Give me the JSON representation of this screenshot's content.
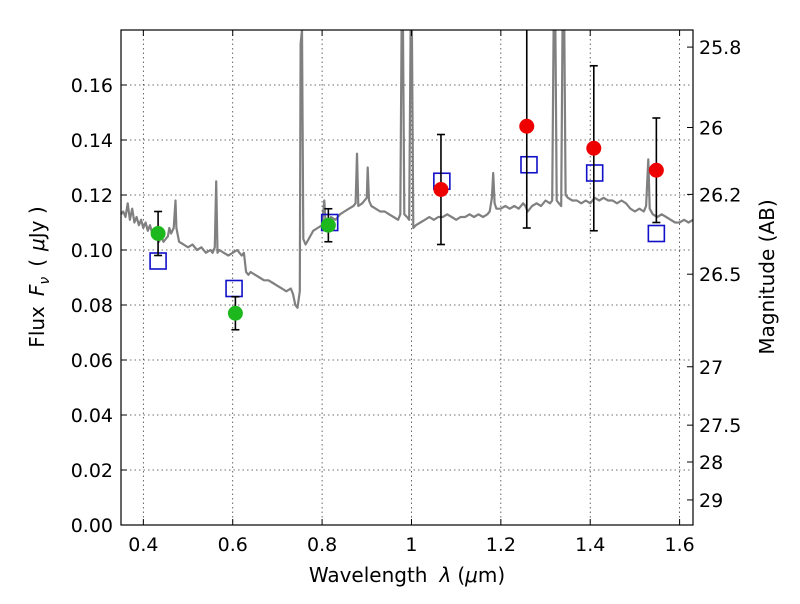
{
  "chart_data": {
    "type": "scatter",
    "title": "",
    "xlabel": {
      "prefix": "Wavelength",
      "symbol": "λ",
      "unit_open": "(",
      "unit_mu": "μ",
      "unit_rest": "m)"
    },
    "ylabel": {
      "prefix": "Flux",
      "symbol": "F",
      "subscript": "ν",
      "unit_open": "(",
      "unit_mu": "μ",
      "unit_rest": "Jy )"
    },
    "y2label": "Magnitude (AB)",
    "xlim": [
      0.35,
      1.63
    ],
    "ylim": [
      0.0,
      0.18
    ],
    "grid": true,
    "x_ticks": [
      {
        "value": 0.4,
        "label": "0.4"
      },
      {
        "value": 0.6,
        "label": "0.6"
      },
      {
        "value": 0.8,
        "label": "0.8"
      },
      {
        "value": 1.0,
        "label": "1"
      },
      {
        "value": 1.2,
        "label": "1.2"
      },
      {
        "value": 1.4,
        "label": "1.4"
      },
      {
        "value": 1.6,
        "label": "1.6"
      }
    ],
    "y_ticks": [
      {
        "value": 0.0,
        "label": "0.00"
      },
      {
        "value": 0.02,
        "label": "0.02"
      },
      {
        "value": 0.04,
        "label": "0.04"
      },
      {
        "value": 0.06,
        "label": "0.06"
      },
      {
        "value": 0.08,
        "label": "0.08"
      },
      {
        "value": 0.1,
        "label": "0.10"
      },
      {
        "value": 0.12,
        "label": "0.12"
      },
      {
        "value": 0.14,
        "label": "0.14"
      },
      {
        "value": 0.16,
        "label": "0.16"
      }
    ],
    "y2_ticks": [
      {
        "mag": 25.8,
        "label": "25.8"
      },
      {
        "mag": 26.0,
        "label": "26"
      },
      {
        "mag": 26.2,
        "label": "26.2"
      },
      {
        "mag": 26.5,
        "label": "26.5"
      },
      {
        "mag": 27.0,
        "label": "27"
      },
      {
        "mag": 27.5,
        "label": "27.5"
      },
      {
        "mag": 28.0,
        "label": "28"
      },
      {
        "mag": 29.0,
        "label": "29"
      }
    ],
    "observed_points": [
      {
        "x": 0.433,
        "y": 0.106,
        "yerr": 0.008,
        "color": "#1db81d"
      },
      {
        "x": 0.606,
        "y": 0.077,
        "yerr": 0.006,
        "color": "#1db81d"
      },
      {
        "x": 0.814,
        "y": 0.109,
        "yerr": 0.006,
        "color": "#1db81d"
      },
      {
        "x": 1.066,
        "y": 0.122,
        "yerr": 0.02,
        "color": "#ee0000"
      },
      {
        "x": 1.258,
        "y": 0.145,
        "yerr": 0.037,
        "color": "#ee0000"
      },
      {
        "x": 1.408,
        "y": 0.137,
        "yerr": 0.03,
        "color": "#ee0000"
      },
      {
        "x": 1.548,
        "y": 0.129,
        "yerr": 0.019,
        "color": "#ee0000"
      }
    ],
    "model_points": [
      {
        "x": 0.433,
        "y": 0.096
      },
      {
        "x": 0.603,
        "y": 0.086
      },
      {
        "x": 0.817,
        "y": 0.11
      },
      {
        "x": 1.068,
        "y": 0.125
      },
      {
        "x": 1.263,
        "y": 0.131
      },
      {
        "x": 1.41,
        "y": 0.128
      },
      {
        "x": 1.548,
        "y": 0.106
      }
    ],
    "model_marker_color": "#1010c8",
    "spectrum_color": "#808080",
    "spectrum": [
      [
        0.35,
        0.113
      ],
      [
        0.355,
        0.114
      ],
      [
        0.36,
        0.112
      ],
      [
        0.365,
        0.117
      ],
      [
        0.37,
        0.111
      ],
      [
        0.375,
        0.115
      ],
      [
        0.38,
        0.11
      ],
      [
        0.385,
        0.112
      ],
      [
        0.39,
        0.109
      ],
      [
        0.395,
        0.111
      ],
      [
        0.4,
        0.108
      ],
      [
        0.405,
        0.11
      ],
      [
        0.41,
        0.107
      ],
      [
        0.415,
        0.109
      ],
      [
        0.42,
        0.106
      ],
      [
        0.425,
        0.107
      ],
      [
        0.43,
        0.104
      ],
      [
        0.435,
        0.103
      ],
      [
        0.44,
        0.105
      ],
      [
        0.445,
        0.103
      ],
      [
        0.45,
        0.104
      ],
      [
        0.455,
        0.105
      ],
      [
        0.458,
        0.108
      ],
      [
        0.462,
        0.106
      ],
      [
        0.468,
        0.108
      ],
      [
        0.472,
        0.118
      ],
      [
        0.474,
        0.108
      ],
      [
        0.48,
        0.103
      ],
      [
        0.49,
        0.102
      ],
      [
        0.5,
        0.101
      ],
      [
        0.51,
        0.102
      ],
      [
        0.52,
        0.1
      ],
      [
        0.53,
        0.101
      ],
      [
        0.54,
        0.099
      ],
      [
        0.55,
        0.1
      ],
      [
        0.555,
        0.099
      ],
      [
        0.56,
        0.101
      ],
      [
        0.563,
        0.125
      ],
      [
        0.566,
        0.099
      ],
      [
        0.57,
        0.1
      ],
      [
        0.58,
        0.099
      ],
      [
        0.59,
        0.098
      ],
      [
        0.6,
        0.099
      ],
      [
        0.61,
        0.1
      ],
      [
        0.615,
        0.099
      ],
      [
        0.62,
        0.098
      ],
      [
        0.625,
        0.099
      ],
      [
        0.63,
        0.092
      ],
      [
        0.635,
        0.091
      ],
      [
        0.64,
        0.092
      ],
      [
        0.65,
        0.091
      ],
      [
        0.66,
        0.09
      ],
      [
        0.67,
        0.089
      ],
      [
        0.68,
        0.089
      ],
      [
        0.69,
        0.088
      ],
      [
        0.7,
        0.087
      ],
      [
        0.71,
        0.086
      ],
      [
        0.72,
        0.085
      ],
      [
        0.73,
        0.086
      ],
      [
        0.735,
        0.084
      ],
      [
        0.74,
        0.08
      ],
      [
        0.745,
        0.079
      ],
      [
        0.75,
        0.085
      ],
      [
        0.752,
        0.175
      ],
      [
        0.755,
        0.18
      ],
      [
        0.758,
        0.104
      ],
      [
        0.763,
        0.102
      ],
      [
        0.77,
        0.104
      ],
      [
        0.78,
        0.107
      ],
      [
        0.79,
        0.108
      ],
      [
        0.8,
        0.109
      ],
      [
        0.805,
        0.118
      ],
      [
        0.808,
        0.109
      ],
      [
        0.815,
        0.11
      ],
      [
        0.82,
        0.112
      ],
      [
        0.83,
        0.111
      ],
      [
        0.84,
        0.113
      ],
      [
        0.85,
        0.114
      ],
      [
        0.86,
        0.115
      ],
      [
        0.87,
        0.116
      ],
      [
        0.875,
        0.117
      ],
      [
        0.878,
        0.135
      ],
      [
        0.881,
        0.116
      ],
      [
        0.89,
        0.117
      ],
      [
        0.895,
        0.118
      ],
      [
        0.9,
        0.119
      ],
      [
        0.902,
        0.13
      ],
      [
        0.905,
        0.118
      ],
      [
        0.91,
        0.116
      ],
      [
        0.92,
        0.115
      ],
      [
        0.93,
        0.114
      ],
      [
        0.94,
        0.114
      ],
      [
        0.95,
        0.113
      ],
      [
        0.96,
        0.112
      ],
      [
        0.97,
        0.111
      ],
      [
        0.975,
        0.113
      ],
      [
        0.978,
        0.18
      ],
      [
        0.981,
        0.18
      ],
      [
        0.984,
        0.113
      ],
      [
        0.99,
        0.112
      ],
      [
        0.995,
        0.111
      ],
      [
        0.998,
        0.18
      ],
      [
        1.001,
        0.18
      ],
      [
        1.004,
        0.108
      ],
      [
        1.01,
        0.109
      ],
      [
        1.02,
        0.11
      ],
      [
        1.03,
        0.111
      ],
      [
        1.04,
        0.112
      ],
      [
        1.05,
        0.111
      ],
      [
        1.06,
        0.112
      ],
      [
        1.07,
        0.112
      ],
      [
        1.08,
        0.113
      ],
      [
        1.09,
        0.112
      ],
      [
        1.1,
        0.111
      ],
      [
        1.11,
        0.112
      ],
      [
        1.12,
        0.112
      ],
      [
        1.13,
        0.113
      ],
      [
        1.14,
        0.112
      ],
      [
        1.15,
        0.113
      ],
      [
        1.16,
        0.112
      ],
      [
        1.17,
        0.113
      ],
      [
        1.175,
        0.114
      ],
      [
        1.18,
        0.119
      ],
      [
        1.183,
        0.128
      ],
      [
        1.186,
        0.117
      ],
      [
        1.19,
        0.115
      ],
      [
        1.2,
        0.115
      ],
      [
        1.21,
        0.116
      ],
      [
        1.22,
        0.115
      ],
      [
        1.23,
        0.116
      ],
      [
        1.24,
        0.115
      ],
      [
        1.25,
        0.117
      ],
      [
        1.255,
        0.116
      ],
      [
        1.26,
        0.114
      ],
      [
        1.27,
        0.116
      ],
      [
        1.28,
        0.117
      ],
      [
        1.29,
        0.116
      ],
      [
        1.3,
        0.118
      ],
      [
        1.31,
        0.117
      ],
      [
        1.315,
        0.118
      ],
      [
        1.318,
        0.18
      ],
      [
        1.322,
        0.18
      ],
      [
        1.325,
        0.118
      ],
      [
        1.33,
        0.117
      ],
      [
        1.335,
        0.116
      ],
      [
        1.338,
        0.18
      ],
      [
        1.342,
        0.18
      ],
      [
        1.345,
        0.12
      ],
      [
        1.35,
        0.119
      ],
      [
        1.36,
        0.118
      ],
      [
        1.37,
        0.118
      ],
      [
        1.38,
        0.117
      ],
      [
        1.39,
        0.118
      ],
      [
        1.4,
        0.117
      ],
      [
        1.41,
        0.119
      ],
      [
        1.42,
        0.118
      ],
      [
        1.43,
        0.119
      ],
      [
        1.44,
        0.118
      ],
      [
        1.45,
        0.118
      ],
      [
        1.46,
        0.117
      ],
      [
        1.47,
        0.118
      ],
      [
        1.48,
        0.117
      ],
      [
        1.49,
        0.115
      ],
      [
        1.5,
        0.114
      ],
      [
        1.51,
        0.115
      ],
      [
        1.52,
        0.114
      ],
      [
        1.525,
        0.116
      ],
      [
        1.53,
        0.133
      ],
      [
        1.533,
        0.115
      ],
      [
        1.54,
        0.113
      ],
      [
        1.55,
        0.112
      ],
      [
        1.56,
        0.113
      ],
      [
        1.57,
        0.112
      ],
      [
        1.58,
        0.111
      ],
      [
        1.59,
        0.11
      ],
      [
        1.6,
        0.11
      ],
      [
        1.61,
        0.111
      ],
      [
        1.62,
        0.11
      ],
      [
        1.63,
        0.111
      ]
    ]
  }
}
